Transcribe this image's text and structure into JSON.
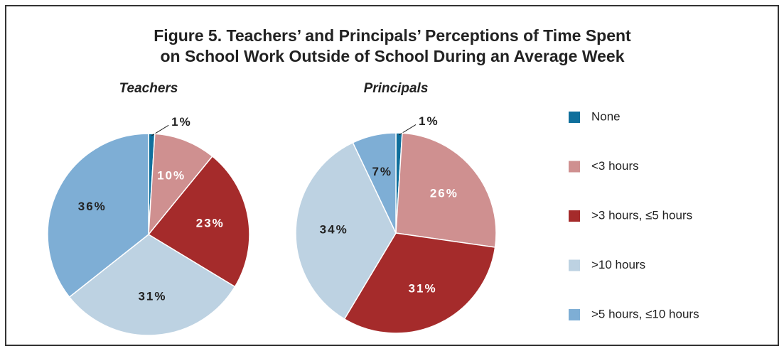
{
  "chart_data": {
    "type": "pie",
    "title": "Figure 5. Teachers’ and Principals’ Perceptions of Time Spent",
    "subtitle": "on School Work Outside of School During an Average Week",
    "categories": [
      "None",
      "<3 hours",
      ">3 hours, ≤5 hours",
      ">10 hours",
      ">5 hours, ≤10 hours"
    ],
    "colors": [
      "#0f6f9c",
      "#cf9090",
      "#a52b2b",
      "#bdd2e2",
      "#7eaed5"
    ],
    "label_colors": [
      "#222222",
      "#ffffff",
      "#ffffff",
      "#222222",
      "#222222"
    ],
    "series": [
      {
        "name": "Teachers",
        "values": [
          1,
          10,
          23,
          31,
          36
        ],
        "value_labels": [
          "1%",
          "10%",
          "23%",
          "31%",
          "36%"
        ]
      },
      {
        "name": "Principals",
        "values": [
          1,
          26,
          31,
          34,
          7
        ],
        "value_labels": [
          "1%",
          "26%",
          "31%",
          "34%",
          "7%"
        ]
      }
    ]
  }
}
